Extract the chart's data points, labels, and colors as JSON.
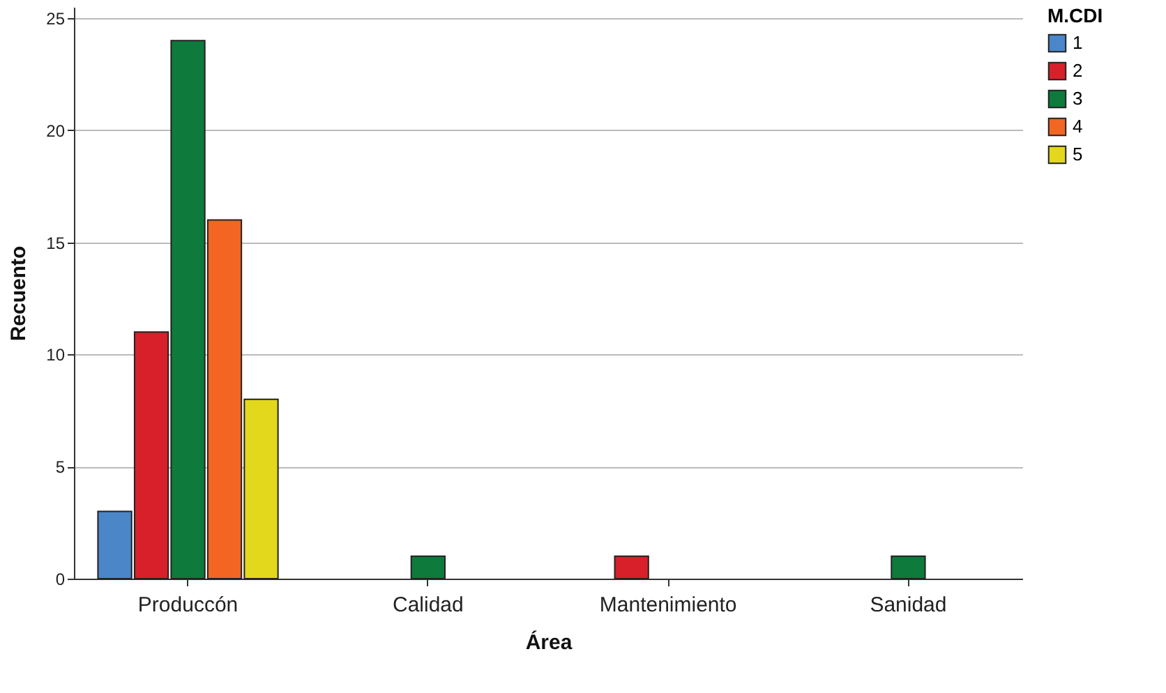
{
  "chart_data": {
    "type": "bar",
    "xlabel": "Área",
    "ylabel": "Recuento",
    "legend_title": "M.CDI",
    "categories": [
      "Produccón",
      "Calidad",
      "Mantenimiento",
      "Sanidad"
    ],
    "series": [
      {
        "name": "1",
        "color": "#4a86c8",
        "values": [
          3,
          null,
          null,
          null
        ]
      },
      {
        "name": "2",
        "color": "#d7202a",
        "values": [
          11,
          null,
          1,
          null
        ]
      },
      {
        "name": "3",
        "color": "#0e7a3c",
        "values": [
          24,
          1,
          null,
          1
        ]
      },
      {
        "name": "4",
        "color": "#f26522",
        "values": [
          16,
          null,
          null,
          null
        ]
      },
      {
        "name": "5",
        "color": "#e3d81b",
        "values": [
          8,
          null,
          null,
          null
        ]
      }
    ],
    "ylim": [
      0,
      25.5
    ],
    "yticks": [
      0,
      5,
      10,
      15,
      20,
      25
    ],
    "grid": "y",
    "legend": "top right"
  }
}
